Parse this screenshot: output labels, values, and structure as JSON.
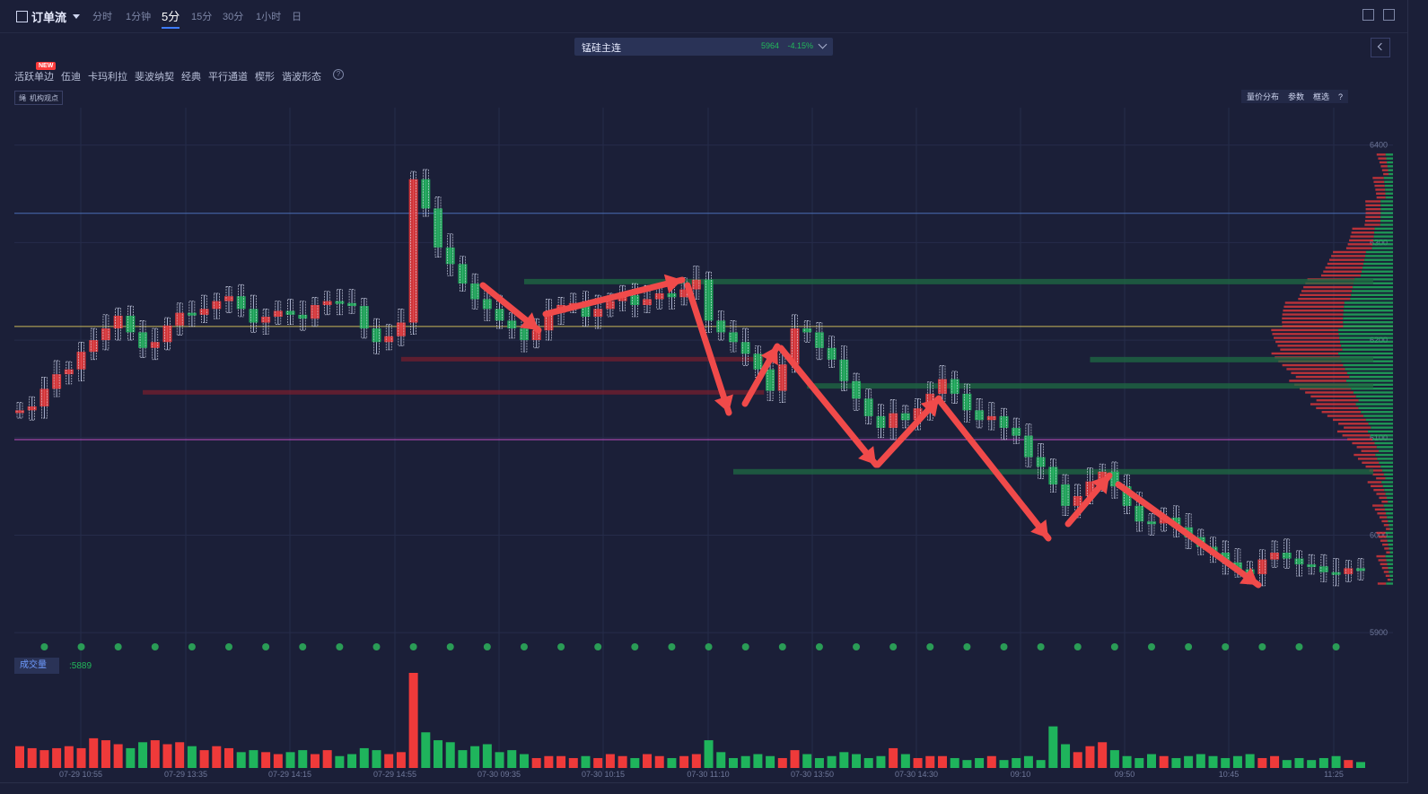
{
  "toolbar": {
    "mode_label": "订单流",
    "timeframes": [
      "分时",
      "1分钟",
      "5分",
      "15分",
      "30分",
      "1小时",
      "日"
    ],
    "active_timeframe": "5分"
  },
  "symbol": {
    "name": "锰硅主连",
    "price": "5964",
    "change": "-4.15%"
  },
  "tools": {
    "items": [
      "活跃单边",
      "伍迪",
      "卡玛利拉",
      "斐波纳契",
      "经典",
      "平行通道",
      "楔形",
      "谐波形态"
    ],
    "new_badge": "NEW",
    "help": "?"
  },
  "institution": {
    "icon_label": "绳",
    "label": "机构观点"
  },
  "right_tools": {
    "items": [
      "量价分布",
      "参数",
      "框选"
    ],
    "help": "?"
  },
  "volume": {
    "tag": "成交量",
    "value": ":5889"
  },
  "colors": {
    "up": "#ef3a3a",
    "down": "#1fb45c",
    "bg": "#1b1f38",
    "arrow": "#f04a4a"
  },
  "chart_data": {
    "type": "bar",
    "title": "",
    "price_axis": {
      "ticks": [
        6400,
        6300,
        6200,
        6100,
        6000,
        5900
      ],
      "ylim": [
        5890,
        6420
      ]
    },
    "time_axis": [
      "07-29 10:55",
      "07-29 13:35",
      "07-29 14:15",
      "07-29 14:55",
      "07-30 09:35",
      "07-30 10:15",
      "07-30 11:10",
      "07-30 13:50",
      "07-30 14:30",
      "09:10",
      "09:50",
      "10:45",
      "11:25"
    ],
    "close": [
      6128,
      6132,
      6150,
      6165,
      6170,
      6188,
      6200,
      6212,
      6225,
      6208,
      6192,
      6198,
      6215,
      6228,
      6226,
      6232,
      6240,
      6245,
      6232,
      6218,
      6224,
      6230,
      6226,
      6222,
      6236,
      6240,
      6238,
      6235,
      6212,
      6198,
      6204,
      6218,
      6365,
      6335,
      6295,
      6278,
      6258,
      6242,
      6232,
      6220,
      6212,
      6200,
      6210,
      6228,
      6236,
      6238,
      6224,
      6232,
      6240,
      6246,
      6236,
      6242,
      6248,
      6244,
      6252,
      6262,
      6220,
      6208,
      6198,
      6186,
      6170,
      6148,
      6175,
      6212,
      6208,
      6192,
      6180,
      6158,
      6140,
      6122,
      6110,
      6125,
      6118,
      6130,
      6145,
      6160,
      6145,
      6128,
      6118,
      6122,
      6110,
      6102,
      6080,
      6070,
      6052,
      6030,
      6040,
      6055,
      6065,
      6050,
      6030,
      6014,
      6012,
      6018,
      6008,
      5998,
      5988,
      5982,
      5972,
      5965,
      5960,
      5975,
      5982,
      5976,
      5970,
      5968,
      5962,
      5960,
      5966,
      5964
    ],
    "volume": [
      22,
      20,
      18,
      20,
      22,
      20,
      30,
      28,
      24,
      20,
      26,
      28,
      24,
      26,
      22,
      18,
      22,
      20,
      16,
      18,
      16,
      14,
      16,
      18,
      14,
      18,
      12,
      14,
      20,
      18,
      14,
      16,
      96,
      36,
      28,
      26,
      18,
      22,
      24,
      16,
      18,
      14,
      10,
      12,
      12,
      10,
      12,
      10,
      14,
      12,
      10,
      14,
      12,
      10,
      12,
      14,
      28,
      16,
      10,
      12,
      14,
      12,
      10,
      18,
      14,
      10,
      12,
      16,
      14,
      10,
      12,
      20,
      14,
      10,
      12,
      12,
      10,
      8,
      10,
      12,
      8,
      10,
      12,
      8,
      42,
      24,
      16,
      22,
      26,
      18,
      12,
      10,
      14,
      12,
      10,
      12,
      14,
      12,
      10,
      12,
      14,
      10,
      12,
      8,
      10,
      8,
      10,
      12,
      8,
      6
    ],
    "volume_last": 5889,
    "support_levels": [
      6260,
      6180,
      6153,
      6065
    ],
    "resistance_levels": [
      6180,
      6146
    ],
    "reference_lines": [
      {
        "price": 6330,
        "color": "#4a6fb5"
      },
      {
        "price": 6214,
        "color": "#c9b85a"
      },
      {
        "price": 6098,
        "color": "#c24fc2"
      }
    ]
  }
}
